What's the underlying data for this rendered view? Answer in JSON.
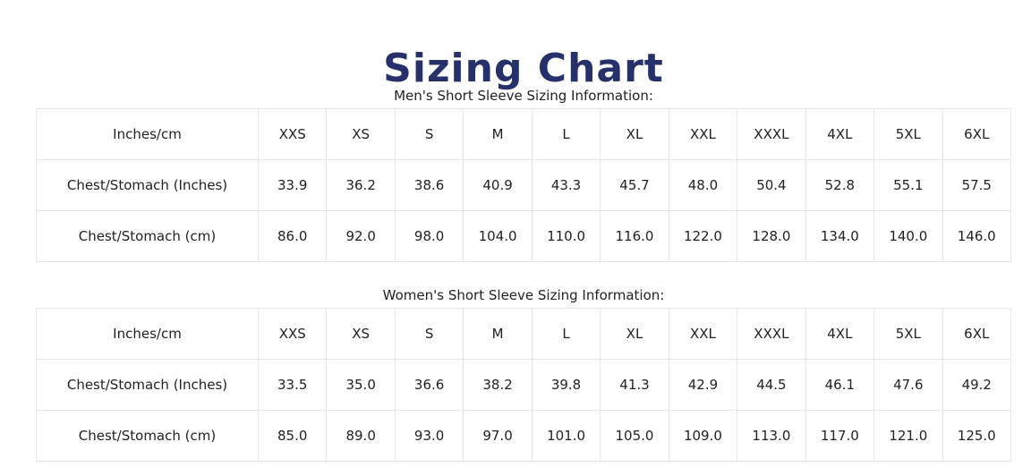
{
  "page": {
    "title": "Sizing Chart"
  },
  "men": {
    "caption": "Men's Short Sleeve Sizing Information:",
    "header_label": "Inches/cm",
    "sizes": [
      "XXS",
      "XS",
      "S",
      "M",
      "L",
      "XL",
      "XXL",
      "XXXL",
      "4XL",
      "5XL",
      "6XL"
    ],
    "rows": [
      {
        "label": "Chest/Stomach (Inches)",
        "values": [
          "33.9",
          "36.2",
          "38.6",
          "40.9",
          "43.3",
          "45.7",
          "48.0",
          "50.4",
          "52.8",
          "55.1",
          "57.5"
        ]
      },
      {
        "label": "Chest/Stomach (cm)",
        "values": [
          "86.0",
          "92.0",
          "98.0",
          "104.0",
          "110.0",
          "116.0",
          "122.0",
          "128.0",
          "134.0",
          "140.0",
          "146.0"
        ]
      }
    ]
  },
  "women": {
    "caption": "Women's Short Sleeve Sizing Information:",
    "header_label": "Inches/cm",
    "sizes": [
      "XXS",
      "XS",
      "S",
      "M",
      "L",
      "XL",
      "XXL",
      "XXXL",
      "4XL",
      "5XL",
      "6XL"
    ],
    "rows": [
      {
        "label": "Chest/Stomach (Inches)",
        "values": [
          "33.5",
          "35.0",
          "36.6",
          "38.2",
          "39.8",
          "41.3",
          "42.9",
          "44.5",
          "46.1",
          "47.6",
          "49.2"
        ]
      },
      {
        "label": "Chest/Stomach (cm)",
        "values": [
          "85.0",
          "89.0",
          "93.0",
          "97.0",
          "101.0",
          "105.0",
          "109.0",
          "113.0",
          "117.0",
          "121.0",
          "125.0"
        ]
      }
    ]
  },
  "colors": {
    "title": "#26306b",
    "text": "#222222",
    "border": "#e6e6e6"
  }
}
